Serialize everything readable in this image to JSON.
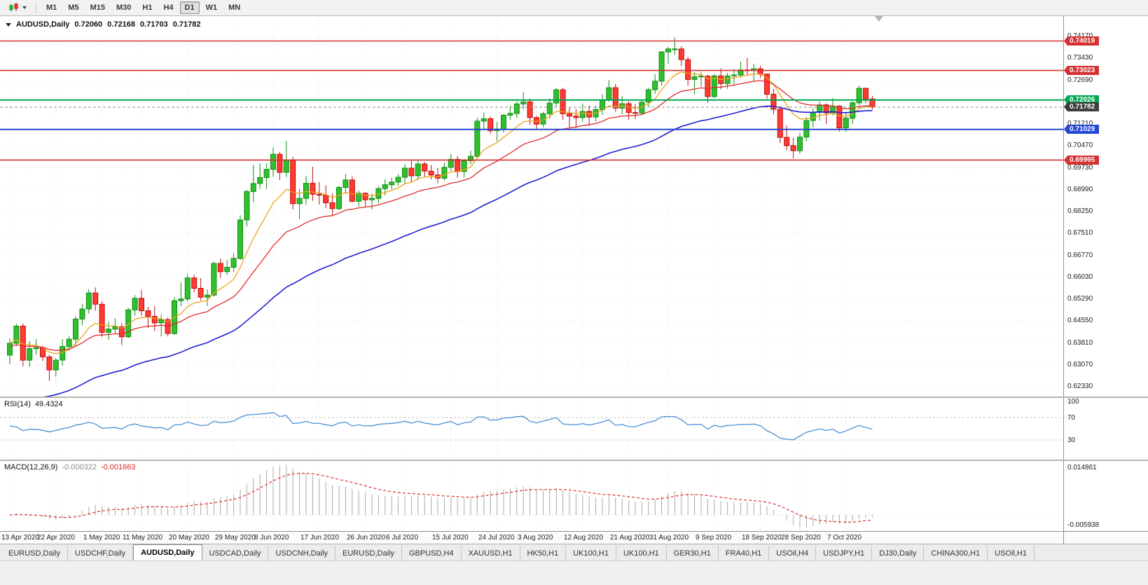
{
  "toolbar": {
    "timeframes": [
      "M1",
      "M5",
      "M15",
      "M30",
      "H1",
      "H4",
      "D1",
      "W1",
      "MN"
    ],
    "active": "D1"
  },
  "chart": {
    "symbol_label": "AUDUSD,Daily",
    "ohlc": {
      "open": "0.72060",
      "high": "0.72168",
      "low": "0.71703",
      "close": "0.71782"
    }
  },
  "tabs": {
    "active_index": 2,
    "items": [
      "EURUSD,Daily",
      "USDCHF,Daily",
      "AUDUSD,Daily",
      "USDCAD,Daily",
      "USDCNH,Daily",
      "EURUSD,Daily",
      "GBPUSD,H4",
      "XAUUSD,H1",
      "HK50,H1",
      "UK100,H1",
      "UK100,H1",
      "GER30,H1",
      "FRA40,H1",
      "USOil,H4",
      "USDJPY,H1",
      "DJ30,Daily",
      "CHINA300,H1",
      "USOil,H1"
    ]
  },
  "chart_data": {
    "type": "candlestick",
    "symbol": "AUDUSD",
    "timeframe": "Daily",
    "price_range": [
      0.62,
      0.7486
    ],
    "colors": {
      "up_fill": "#2fbf2f",
      "up_stroke": "#0f8f0f",
      "down_fill": "#ff3b30",
      "down_stroke": "#c00d0d",
      "grid": "#e4e4e4",
      "axis_text": "#1a1a1a"
    },
    "y_ticks": [
      "0.74170",
      "0.73430",
      "0.72690",
      "0.71950",
      "0.71210",
      "0.70470",
      "0.69730",
      "0.68990",
      "0.68250",
      "0.67510",
      "0.66770",
      "0.66030",
      "0.65290",
      "0.64550",
      "0.63810",
      "0.63070",
      "0.62330"
    ],
    "x_labels": [
      {
        "text": "13 Apr 2020",
        "bar": 0
      },
      {
        "text": "22 Apr 2020",
        "bar": 7
      },
      {
        "text": "1 May 2020",
        "bar": 14
      },
      {
        "text": "11 May 2020",
        "bar": 20
      },
      {
        "text": "20 May 2020",
        "bar": 27
      },
      {
        "text": "29 May 2020",
        "bar": 34
      },
      {
        "text": "8 Jun 2020",
        "bar": 40
      },
      {
        "text": "17 Jun 2020",
        "bar": 47
      },
      {
        "text": "26 Jun 2020",
        "bar": 54
      },
      {
        "text": "6 Jul 2020",
        "bar": 60
      },
      {
        "text": "15 Jul 2020",
        "bar": 67
      },
      {
        "text": "24 Jul 2020",
        "bar": 74
      },
      {
        "text": "3 Aug 2020",
        "bar": 80
      },
      {
        "text": "12 Aug 2020",
        "bar": 87
      },
      {
        "text": "21 Aug 2020",
        "bar": 94
      },
      {
        "text": "31 Aug 2020",
        "bar": 100
      },
      {
        "text": "9 Sep 2020",
        "bar": 107
      },
      {
        "text": "18 Sep 2020",
        "bar": 114
      },
      {
        "text": "28 Sep 2020",
        "bar": 120
      },
      {
        "text": "7 Oct 2020",
        "bar": 127
      }
    ],
    "levels": [
      {
        "price": 0.74019,
        "label": "0.74019",
        "color": "#d63031",
        "width": 1.6,
        "kind": "resistance"
      },
      {
        "price": 0.73023,
        "label": "0.73023",
        "color": "#d63031",
        "width": 1.6,
        "kind": "resistance"
      },
      {
        "price": 0.72026,
        "label": "0.72026",
        "color": "#00a651",
        "width": 2,
        "kind": "level"
      },
      {
        "price": 0.71029,
        "label": "0.71029",
        "color": "#2447d6",
        "width": 2,
        "kind": "support"
      },
      {
        "price": 0.69995,
        "label": "0.69995",
        "color": "#d63031",
        "width": 1.6,
        "kind": "support"
      }
    ],
    "current_price": {
      "price": 0.71782,
      "label": "0.71782",
      "color": "#3d3d3d"
    },
    "overlays": [
      {
        "name": "ma-fast-orange",
        "period": 9,
        "seed": 0.638,
        "color": "#eea21d",
        "width": 1.3
      },
      {
        "name": "ma-mid-red",
        "period": 21,
        "seed": 0.6368,
        "color": "#e02b2b",
        "width": 1.3
      },
      {
        "name": "ma-slow-blue",
        "period": 48,
        "seed": 0.615,
        "color": "#1f1fd0",
        "width": 1.6
      }
    ],
    "candles": [
      [
        0.634,
        0.6396,
        0.6309,
        0.638
      ],
      [
        0.638,
        0.6445,
        0.637,
        0.6438
      ],
      [
        0.6438,
        0.6447,
        0.6302,
        0.6323
      ],
      [
        0.6323,
        0.6387,
        0.63,
        0.6362
      ],
      [
        0.6362,
        0.6394,
        0.6341,
        0.6365
      ],
      [
        0.6365,
        0.6372,
        0.632,
        0.6334
      ],
      [
        0.6334,
        0.6341,
        0.6253,
        0.629
      ],
      [
        0.629,
        0.633,
        0.6267,
        0.6323
      ],
      [
        0.6323,
        0.6394,
        0.6305,
        0.6369
      ],
      [
        0.6369,
        0.6404,
        0.6355,
        0.6394
      ],
      [
        0.6394,
        0.6471,
        0.6372,
        0.6462
      ],
      [
        0.6462,
        0.6514,
        0.6441,
        0.6496
      ],
      [
        0.6496,
        0.6563,
        0.648,
        0.655
      ],
      [
        0.655,
        0.6569,
        0.649,
        0.6512
      ],
      [
        0.6512,
        0.6522,
        0.6402,
        0.6417
      ],
      [
        0.6417,
        0.6452,
        0.6392,
        0.6428
      ],
      [
        0.6428,
        0.6465,
        0.6414,
        0.6436
      ],
      [
        0.6436,
        0.6448,
        0.6374,
        0.6402
      ],
      [
        0.6402,
        0.65,
        0.6398,
        0.6493
      ],
      [
        0.6493,
        0.6543,
        0.6473,
        0.6532
      ],
      [
        0.6532,
        0.656,
        0.6474,
        0.649
      ],
      [
        0.649,
        0.6503,
        0.6432,
        0.6471
      ],
      [
        0.6471,
        0.6506,
        0.6421,
        0.6449
      ],
      [
        0.6449,
        0.6478,
        0.6403,
        0.646
      ],
      [
        0.646,
        0.6468,
        0.6404,
        0.6413
      ],
      [
        0.6413,
        0.6536,
        0.6409,
        0.6524
      ],
      [
        0.6524,
        0.6585,
        0.6505,
        0.653
      ],
      [
        0.653,
        0.6616,
        0.6521,
        0.6601
      ],
      [
        0.6601,
        0.6611,
        0.6552,
        0.6566
      ],
      [
        0.6566,
        0.66,
        0.6525,
        0.6536
      ],
      [
        0.6536,
        0.6562,
        0.6506,
        0.6543
      ],
      [
        0.6543,
        0.6657,
        0.6538,
        0.665
      ],
      [
        0.665,
        0.6666,
        0.6602,
        0.6622
      ],
      [
        0.6622,
        0.6661,
        0.6611,
        0.6637
      ],
      [
        0.6637,
        0.6684,
        0.6621,
        0.6667
      ],
      [
        0.6667,
        0.6813,
        0.6661,
        0.6797
      ],
      [
        0.6797,
        0.6899,
        0.6775,
        0.6893
      ],
      [
        0.6893,
        0.6983,
        0.6858,
        0.692
      ],
      [
        0.692,
        0.6988,
        0.6903,
        0.694
      ],
      [
        0.694,
        0.6989,
        0.6902,
        0.6968
      ],
      [
        0.6968,
        0.7043,
        0.6943,
        0.7019
      ],
      [
        0.7019,
        0.7027,
        0.6932,
        0.6958
      ],
      [
        0.6958,
        0.7064,
        0.6942,
        0.7
      ],
      [
        0.7,
        0.701,
        0.6832,
        0.6852
      ],
      [
        0.6852,
        0.6902,
        0.68,
        0.687
      ],
      [
        0.687,
        0.6946,
        0.6848,
        0.6921
      ],
      [
        0.6921,
        0.6977,
        0.6862,
        0.6884
      ],
      [
        0.6884,
        0.6925,
        0.6849,
        0.6881
      ],
      [
        0.6881,
        0.6914,
        0.6837,
        0.6855
      ],
      [
        0.6855,
        0.6886,
        0.681,
        0.6835
      ],
      [
        0.6835,
        0.6912,
        0.683,
        0.6907
      ],
      [
        0.6907,
        0.6952,
        0.6885,
        0.6932
      ],
      [
        0.6932,
        0.6944,
        0.6856,
        0.686
      ],
      [
        0.686,
        0.6896,
        0.6842,
        0.6887
      ],
      [
        0.6887,
        0.6891,
        0.6842,
        0.6865
      ],
      [
        0.6865,
        0.6886,
        0.6833,
        0.687
      ],
      [
        0.687,
        0.6911,
        0.6854,
        0.6903
      ],
      [
        0.6903,
        0.6935,
        0.688,
        0.6916
      ],
      [
        0.6916,
        0.694,
        0.6901,
        0.6925
      ],
      [
        0.6925,
        0.6952,
        0.6912,
        0.6941
      ],
      [
        0.6941,
        0.6986,
        0.6921,
        0.6972
      ],
      [
        0.6972,
        0.6998,
        0.6923,
        0.6946
      ],
      [
        0.6946,
        0.6999,
        0.6932,
        0.6986
      ],
      [
        0.6986,
        0.6993,
        0.6942,
        0.6962
      ],
      [
        0.6962,
        0.6983,
        0.6934,
        0.6949
      ],
      [
        0.6949,
        0.6973,
        0.6921,
        0.6938
      ],
      [
        0.6938,
        0.6991,
        0.6931,
        0.6975
      ],
      [
        0.6975,
        0.702,
        0.6963,
        0.7002
      ],
      [
        0.7002,
        0.7013,
        0.694,
        0.6961
      ],
      [
        0.6961,
        0.7003,
        0.6941,
        0.6997
      ],
      [
        0.6997,
        0.7031,
        0.6985,
        0.7012
      ],
      [
        0.7012,
        0.7142,
        0.7005,
        0.7131
      ],
      [
        0.7131,
        0.716,
        0.7101,
        0.7139
      ],
      [
        0.7139,
        0.7146,
        0.7088,
        0.7099
      ],
      [
        0.7099,
        0.7128,
        0.7063,
        0.7104
      ],
      [
        0.7104,
        0.7155,
        0.7092,
        0.7151
      ],
      [
        0.7151,
        0.7183,
        0.7135,
        0.7157
      ],
      [
        0.7157,
        0.7198,
        0.7142,
        0.7189
      ],
      [
        0.7189,
        0.7228,
        0.7171,
        0.7196
      ],
      [
        0.7196,
        0.7207,
        0.7119,
        0.7143
      ],
      [
        0.7143,
        0.7149,
        0.7102,
        0.7121
      ],
      [
        0.7121,
        0.7162,
        0.711,
        0.7156
      ],
      [
        0.7156,
        0.7208,
        0.714,
        0.7192
      ],
      [
        0.7192,
        0.7242,
        0.718,
        0.7237
      ],
      [
        0.7237,
        0.7243,
        0.7136,
        0.7156
      ],
      [
        0.7156,
        0.7176,
        0.711,
        0.7148
      ],
      [
        0.7148,
        0.7172,
        0.7108,
        0.7143
      ],
      [
        0.7143,
        0.719,
        0.7129,
        0.7164
      ],
      [
        0.7164,
        0.7185,
        0.7115,
        0.7145
      ],
      [
        0.7145,
        0.7183,
        0.7129,
        0.717
      ],
      [
        0.717,
        0.7222,
        0.7152,
        0.7203
      ],
      [
        0.7203,
        0.7269,
        0.7197,
        0.7244
      ],
      [
        0.7244,
        0.7257,
        0.7163,
        0.7175
      ],
      [
        0.7175,
        0.7216,
        0.7155,
        0.719
      ],
      [
        0.719,
        0.7198,
        0.7136,
        0.716
      ],
      [
        0.716,
        0.7189,
        0.7138,
        0.7159
      ],
      [
        0.7159,
        0.7203,
        0.7151,
        0.7195
      ],
      [
        0.7195,
        0.7244,
        0.7181,
        0.7237
      ],
      [
        0.7237,
        0.729,
        0.7223,
        0.7266
      ],
      [
        0.7266,
        0.7368,
        0.7251,
        0.7365
      ],
      [
        0.7365,
        0.7382,
        0.7325,
        0.7375
      ],
      [
        0.7375,
        0.7414,
        0.7355,
        0.7375
      ],
      [
        0.7375,
        0.7384,
        0.7317,
        0.7339
      ],
      [
        0.7339,
        0.7349,
        0.7251,
        0.7272
      ],
      [
        0.7272,
        0.7296,
        0.7222,
        0.7281
      ],
      [
        0.7281,
        0.7296,
        0.7248,
        0.7283
      ],
      [
        0.7283,
        0.7288,
        0.7193,
        0.7214
      ],
      [
        0.7214,
        0.729,
        0.721,
        0.7284
      ],
      [
        0.7284,
        0.731,
        0.7238,
        0.7258
      ],
      [
        0.7258,
        0.7294,
        0.724,
        0.7284
      ],
      [
        0.7284,
        0.7306,
        0.725,
        0.7287
      ],
      [
        0.7287,
        0.7332,
        0.7278,
        0.7304
      ],
      [
        0.7304,
        0.7345,
        0.7284,
        0.7302
      ],
      [
        0.7302,
        0.7324,
        0.7264,
        0.7308
      ],
      [
        0.7308,
        0.7318,
        0.7277,
        0.729
      ],
      [
        0.729,
        0.7292,
        0.7207,
        0.7222
      ],
      [
        0.7222,
        0.724,
        0.7154,
        0.7171
      ],
      [
        0.7171,
        0.7182,
        0.7057,
        0.7076
      ],
      [
        0.7076,
        0.7116,
        0.7033,
        0.7048
      ],
      [
        0.7048,
        0.7075,
        0.7005,
        0.7031
      ],
      [
        0.7031,
        0.7092,
        0.7021,
        0.7077
      ],
      [
        0.7077,
        0.7145,
        0.7063,
        0.7133
      ],
      [
        0.7133,
        0.7175,
        0.711,
        0.7161
      ],
      [
        0.7161,
        0.7197,
        0.7133,
        0.7186
      ],
      [
        0.7186,
        0.7191,
        0.7121,
        0.7159
      ],
      [
        0.7159,
        0.7209,
        0.715,
        0.7182
      ],
      [
        0.7182,
        0.7185,
        0.7096,
        0.7108
      ],
      [
        0.7108,
        0.7158,
        0.7095,
        0.7141
      ],
      [
        0.7141,
        0.7198,
        0.7122,
        0.7193
      ],
      [
        0.7193,
        0.725,
        0.7185,
        0.7242
      ],
      [
        0.7242,
        0.7244,
        0.7192,
        0.7206
      ],
      [
        0.7206,
        0.72168,
        0.71703,
        0.71782
      ]
    ],
    "rsi": {
      "name": "RSI(14)",
      "value": "49.4324",
      "period": 14,
      "color": "#4a90d9",
      "levels": [
        70,
        30
      ],
      "axis_labels": [
        "100",
        "70",
        "30"
      ]
    },
    "macd": {
      "name": "MACD(12,26,9)",
      "value_main": "-0.000322",
      "value_signal": "-0.001663",
      "fast": 12,
      "slow": 26,
      "signal_period": 9,
      "axis_max": "0.014861",
      "axis_min": "-0.005938",
      "hist_color": "#a9a9a9",
      "signal_color": "#e02b2b"
    }
  }
}
